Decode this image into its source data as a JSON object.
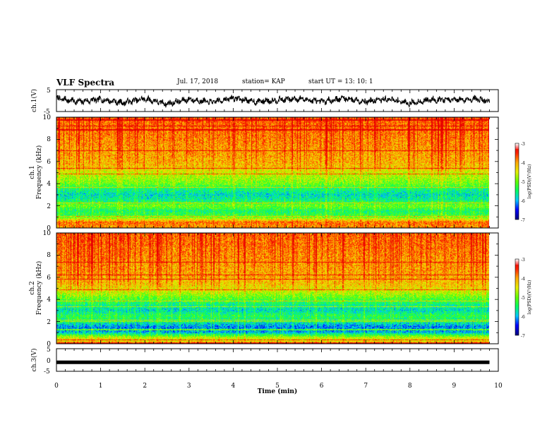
{
  "header": {
    "title": "VLF Spectra",
    "date": "Jul. 17, 2018",
    "station": "station= KAP",
    "start": "start  UT =   13: 10: 1"
  },
  "colorbar": {
    "label": "log(PSD)(V²/Hz)",
    "ticks": [
      "-3",
      "-4",
      "-5",
      "-6",
      "-7"
    ],
    "range": [
      -7,
      -3
    ],
    "colors": [
      "#000080",
      "#0000ff",
      "#00c8ff",
      "#00ff64",
      "#64ff00",
      "#e6f000",
      "#ffaa00",
      "#ff2200",
      "#e60000",
      "#ffffff"
    ]
  },
  "chart_data": [
    {
      "type": "line",
      "name": "ch1-waveform",
      "ylabel": "ch.1(V)",
      "ylim": [
        -5,
        5
      ],
      "yticks": [
        "5",
        "-5"
      ],
      "xlim": [
        0,
        10
      ],
      "note_series": "noisy waveform oscillating mostly between about -2.5 and +2.5 V",
      "x": [
        0,
        0.5,
        1,
        1.5,
        2,
        2.5,
        3,
        3.5,
        4,
        4.5,
        5,
        5.5,
        6,
        6.5,
        7,
        7.5,
        8,
        8.5,
        9,
        9.5,
        9.8
      ],
      "y": [
        1.0,
        -0.5,
        0.5,
        -1.0,
        0.8,
        -1.5,
        0.6,
        -0.8,
        1.2,
        -0.5,
        0.3,
        0.9,
        -0.6,
        1.1,
        -0.4,
        0.7,
        -1.2,
        0.5,
        0.2,
        0.8,
        -0.3
      ]
    },
    {
      "type": "heatmap",
      "name": "ch1-spectrogram",
      "ylabel_top": "ch.1",
      "ylabel": "Frequency (kHz)",
      "ylim": [
        0,
        10
      ],
      "yticks": [
        "0",
        "2",
        "4",
        "6",
        "8",
        "10"
      ],
      "xlim": [
        0,
        10
      ],
      "zlim": [
        -7,
        -3
      ],
      "band_profile_khz": [
        0,
        0.5,
        1,
        1.5,
        2,
        2.5,
        3,
        3.5,
        4,
        4.5,
        5,
        5.5,
        6,
        7,
        8,
        9,
        10
      ],
      "band_profile_log_psd": [
        -4.0,
        -3.8,
        -5.2,
        -5.5,
        -5.0,
        -5.6,
        -5.8,
        -5.5,
        -5.0,
        -4.8,
        -4.6,
        -4.2,
        -4.1,
        -4.0,
        -3.9,
        -3.8,
        -3.7
      ]
    },
    {
      "type": "heatmap",
      "name": "ch2-spectrogram",
      "ylabel_top": "ch.2",
      "ylabel": "Frequency (kHz)",
      "ylim": [
        0,
        10
      ],
      "yticks": [
        "0",
        "2",
        "4",
        "6",
        "8",
        "10"
      ],
      "xlim": [
        0,
        10
      ],
      "zlim": [
        -7,
        -3
      ],
      "band_profile_khz": [
        0,
        0.5,
        1,
        1.5,
        2,
        2.5,
        3,
        3.5,
        4,
        4.5,
        5,
        5.5,
        6,
        7,
        8,
        9,
        10
      ],
      "band_profile_log_psd": [
        -4.2,
        -4.6,
        -6.0,
        -6.2,
        -5.6,
        -5.4,
        -5.8,
        -5.6,
        -5.2,
        -4.8,
        -4.4,
        -4.2,
        -4.1,
        -4.0,
        -3.9,
        -3.8,
        -3.7
      ]
    },
    {
      "type": "line",
      "name": "ch3-waveform",
      "ylabel": "ch.3(V)",
      "ylim": [
        -5,
        5
      ],
      "yticks": [
        "5",
        "0",
        "-5"
      ],
      "xlabel": "Time (min)",
      "xlim": [
        0,
        10
      ],
      "xticks": [
        "0",
        "1",
        "2",
        "3",
        "4",
        "5",
        "6",
        "7",
        "8",
        "9",
        "10"
      ],
      "x": [
        0,
        9.8
      ],
      "y": [
        -1,
        -1
      ]
    }
  ]
}
